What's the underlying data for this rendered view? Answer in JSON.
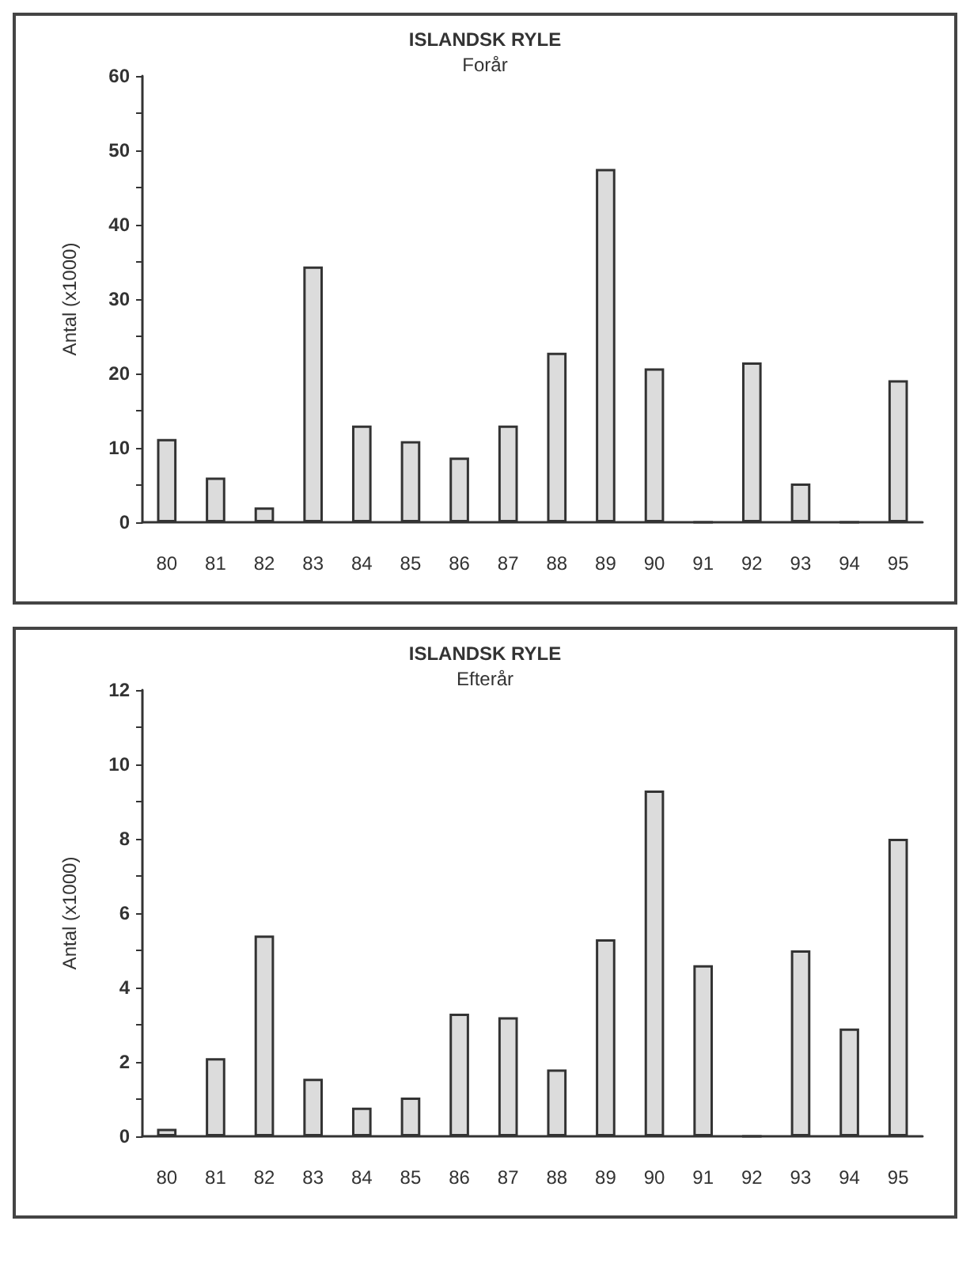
{
  "chart_data": [
    {
      "type": "bar",
      "title": "ISLANDSK RYLE",
      "subtitle": "Forår",
      "ylabel": "Antal (x1000)",
      "categories": [
        "80",
        "81",
        "82",
        "83",
        "84",
        "85",
        "86",
        "87",
        "88",
        "89",
        "90",
        "91",
        "92",
        "93",
        "94",
        "95"
      ],
      "values": [
        11.2,
        6.0,
        2.0,
        34.4,
        13.0,
        10.9,
        8.7,
        13.0,
        22.8,
        47.5,
        20.7,
        0,
        21.5,
        5.2,
        0,
        19.1
      ],
      "color": "#dcdcdc",
      "ylim": [
        0,
        60
      ],
      "yticks": [
        0,
        10,
        20,
        30,
        40,
        50,
        60
      ],
      "grid": false
    },
    {
      "type": "bar",
      "title": "ISLANDSK RYLE",
      "subtitle": "Efterår",
      "ylabel": "Antal (x1000)",
      "categories": [
        "80",
        "81",
        "82",
        "83",
        "84",
        "85",
        "86",
        "87",
        "88",
        "89",
        "90",
        "91",
        "92",
        "93",
        "94",
        "95"
      ],
      "values": [
        0.2,
        2.1,
        5.4,
        1.55,
        0.77,
        1.04,
        3.3,
        3.2,
        1.8,
        5.3,
        9.3,
        4.6,
        0,
        5.0,
        2.9,
        8.0
      ],
      "color": "#dcdcdc",
      "ylim": [
        0,
        12
      ],
      "yticks": [
        0,
        2,
        4,
        6,
        8,
        10,
        12
      ],
      "grid": false
    }
  ]
}
